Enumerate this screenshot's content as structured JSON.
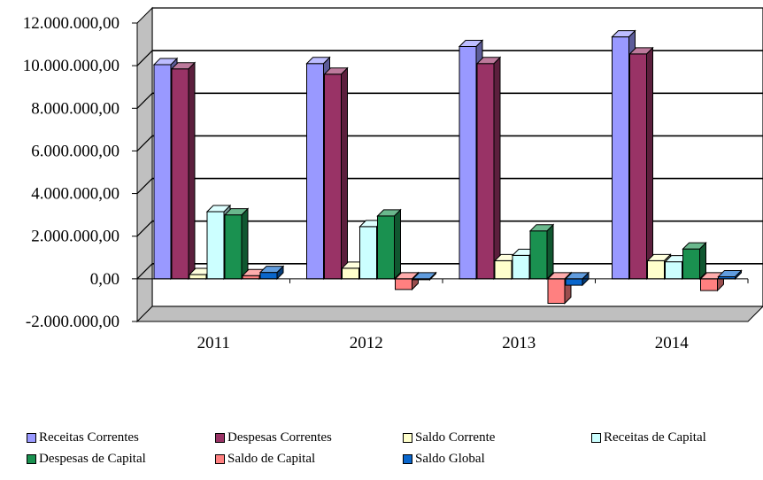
{
  "chart_data": {
    "type": "bar",
    "title": "",
    "xlabel": "",
    "ylabel": "",
    "categories": [
      "2011",
      "2012",
      "2013",
      "2014"
    ],
    "ylim": [
      -2000000,
      12000000
    ],
    "yticks": [
      -2000000,
      0,
      2000000,
      4000000,
      6000000,
      8000000,
      10000000,
      12000000
    ],
    "ytick_labels": [
      "-2.000.000,00",
      "0,00",
      "2.000.000,00",
      "4.000.000,00",
      "6.000.000,00",
      "8.000.000,00",
      "10.000.000,00",
      "12.000.000,00"
    ],
    "grid": true,
    "legend_position": "bottom",
    "series": [
      {
        "name": "Receitas Correntes",
        "color": "#9999ff",
        "values": [
          10050000,
          10100000,
          10900000,
          11350000
        ]
      },
      {
        "name": "Despesas Correntes",
        "color": "#993366",
        "values": [
          9850000,
          9600000,
          10100000,
          10550000
        ]
      },
      {
        "name": "Saldo Corrente",
        "color": "#ffffcc",
        "values": [
          200000,
          500000,
          850000,
          850000
        ]
      },
      {
        "name": "Receitas de Capital",
        "color": "#ccffff",
        "values": [
          3150000,
          2450000,
          1100000,
          800000
        ]
      },
      {
        "name": "Despesas de Capital",
        "color": "#1a9150",
        "values": [
          3000000,
          2950000,
          2250000,
          1400000
        ]
      },
      {
        "name": "Saldo de Capital",
        "color": "#ff8080",
        "values": [
          150000,
          -500000,
          -1150000,
          -550000
        ]
      },
      {
        "name": "Saldo Global",
        "color": "#0a66cc",
        "values": [
          300000,
          0,
          -300000,
          100000
        ]
      }
    ]
  }
}
